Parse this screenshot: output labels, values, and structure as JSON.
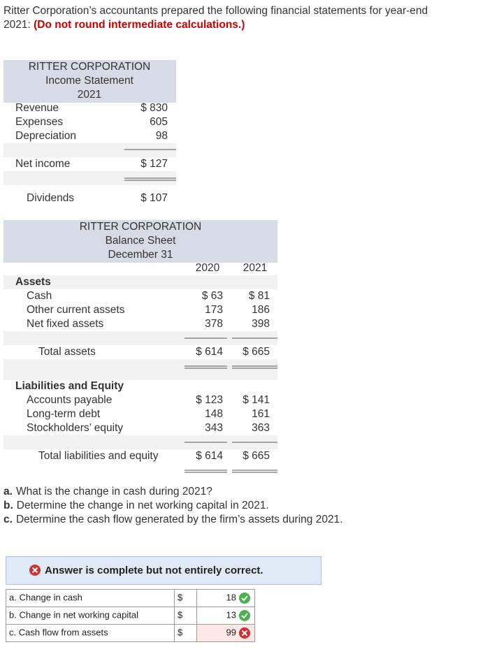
{
  "intro": {
    "line1": "Ritter Corporation’s accountants prepared the following financial statements for year-end",
    "line2": "2021:",
    "note": "(Do not round intermediate calculations.)"
  },
  "income_statement": {
    "header": [
      "RITTER CORPORATION",
      "Income Statement",
      "2021"
    ],
    "rows": [
      {
        "label": "Revenue",
        "value": "$ 830"
      },
      {
        "label": "Expenses",
        "value": "605"
      },
      {
        "label": "Depreciation",
        "value": "98"
      },
      {
        "label": "Net income",
        "value": "$ 127"
      },
      {
        "label": "Dividends",
        "value": "$ 107"
      }
    ]
  },
  "balance_sheet": {
    "header": [
      "RITTER CORPORATION",
      "Balance Sheet",
      "December 31"
    ],
    "columns": [
      "2020",
      "2021"
    ],
    "rows": [
      {
        "label": "Assets"
      },
      {
        "label": "Cash",
        "values": [
          "$ 63",
          "$ 81"
        ]
      },
      {
        "label": "Other current assets",
        "values": [
          "173",
          "186"
        ]
      },
      {
        "label": "Net fixed assets",
        "values": [
          "378",
          "398"
        ]
      },
      {
        "label": "Total assets",
        "values": [
          "$ 614",
          "$ 665"
        ]
      },
      {
        "label": "Liabilities and Equity"
      },
      {
        "label": "Accounts payable",
        "values": [
          "$ 123",
          "$ 141"
        ]
      },
      {
        "label": "Long-term debt",
        "values": [
          "148",
          "161"
        ]
      },
      {
        "label": "Stockholders’ equity",
        "values": [
          "343",
          "363"
        ]
      },
      {
        "label": "Total liabilities and equity",
        "values": [
          "$ 614",
          "$ 665"
        ]
      }
    ]
  },
  "questions": [
    {
      "label": "a.",
      "text": "What is the change in cash during 2021?"
    },
    {
      "label": "b.",
      "text": "Determine the change in net working capital in 2021."
    },
    {
      "label": "c.",
      "text": "Determine the cash flow generated by the firm’s assets during 2021."
    }
  ],
  "answer": {
    "banner": "Answer is complete but not entirely correct.",
    "rows": [
      {
        "label": "a. Change in cash",
        "currency": "$",
        "value": 18
      },
      {
        "label": "b. Change in net working capital",
        "currency": "$",
        "value": 13
      },
      {
        "label": "c. Cash flow from assets",
        "currency": "$",
        "value": 99
      }
    ]
  }
}
